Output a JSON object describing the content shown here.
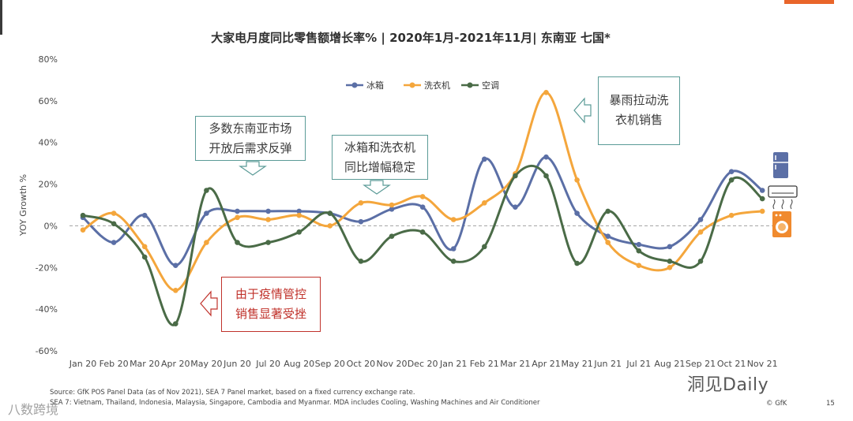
{
  "page": {
    "number": "15",
    "copyright": "© GfK"
  },
  "watermarks": {
    "primary": "洞见Daily",
    "secondary": "八数跨境"
  },
  "callouts": {
    "reopen": [
      "多数东南亚市场",
      "开放后需求反弹"
    ],
    "stable": [
      "冰箱和洗衣机",
      "同比增幅稳定"
    ],
    "rain": [
      "暴雨拉动洗",
      "衣机销售"
    ],
    "covid": [
      "由于疫情管控",
      "销售显著受挫"
    ]
  },
  "source": {
    "line1": "Source: GfK POS Panel Data (as of Nov 2021), SEA 7 Panel market, based on a fixed currency exchange rate.",
    "line2": "SEA 7: Vietnam, Thailand, Indonesia, Malaysia, Singapore, Cambodia and Myanmar. MDA includes Cooling, Washing Machines and Air Conditioner"
  },
  "colors": {
    "fridge": "#5b6fa6",
    "washer": "#f4a63c",
    "ac": "#4a6b47",
    "zero_line": "#a0a0a0"
  },
  "icons": [
    "fridge-icon",
    "air-conditioner-icon",
    "washing-machine-icon"
  ],
  "chart_data": {
    "type": "line",
    "title": "大家电月度同比零售额增长率% | 2020年1月-2021年11月| 东南亚 七国*",
    "ylabel": "YOY Growth %",
    "xlabel": "",
    "ylim": [
      -60,
      80
    ],
    "yticks": [
      80,
      60,
      40,
      20,
      0,
      -20,
      -40,
      -60
    ],
    "ytick_labels": [
      "80%",
      "60%",
      "40%",
      "20%",
      "0%",
      "-20%",
      "-40%",
      "-60%"
    ],
    "categories": [
      "Jan 20",
      "Feb 20",
      "Mar 20",
      "Apr 20",
      "May 20",
      "Jun 20",
      "Jul 20",
      "Aug 20",
      "Sep 20",
      "Oct 20",
      "Nov 20",
      "Dec 20",
      "Jan 21",
      "Feb 21",
      "Mar 21",
      "Apr 21",
      "May 21",
      "Jun 21",
      "Jul 21",
      "Aug 21",
      "Sep 21",
      "Oct 21",
      "Nov 21"
    ],
    "legend_position": "top-center",
    "series": [
      {
        "name": "冰箱",
        "key": "fridge",
        "values": [
          4,
          -8,
          5,
          -19,
          6,
          7,
          7,
          7,
          6,
          2,
          8,
          9,
          -11,
          32,
          9,
          33,
          6,
          -5,
          -9,
          -10,
          3,
          26,
          17
        ]
      },
      {
        "name": "洗衣机",
        "key": "washer",
        "values": [
          -2,
          6,
          -10,
          -31,
          -8,
          4,
          3,
          5,
          0,
          11,
          10,
          14,
          3,
          11,
          25,
          64,
          22,
          -8,
          -19,
          -20,
          -3,
          5,
          7
        ]
      },
      {
        "name": "空调",
        "key": "ac",
        "values": [
          5,
          1,
          -15,
          -47,
          17,
          -8,
          -8,
          -3,
          6,
          -17,
          -5,
          -3,
          -17,
          -10,
          24,
          24,
          -18,
          7,
          -12,
          -17,
          -17,
          22,
          13
        ]
      }
    ]
  }
}
